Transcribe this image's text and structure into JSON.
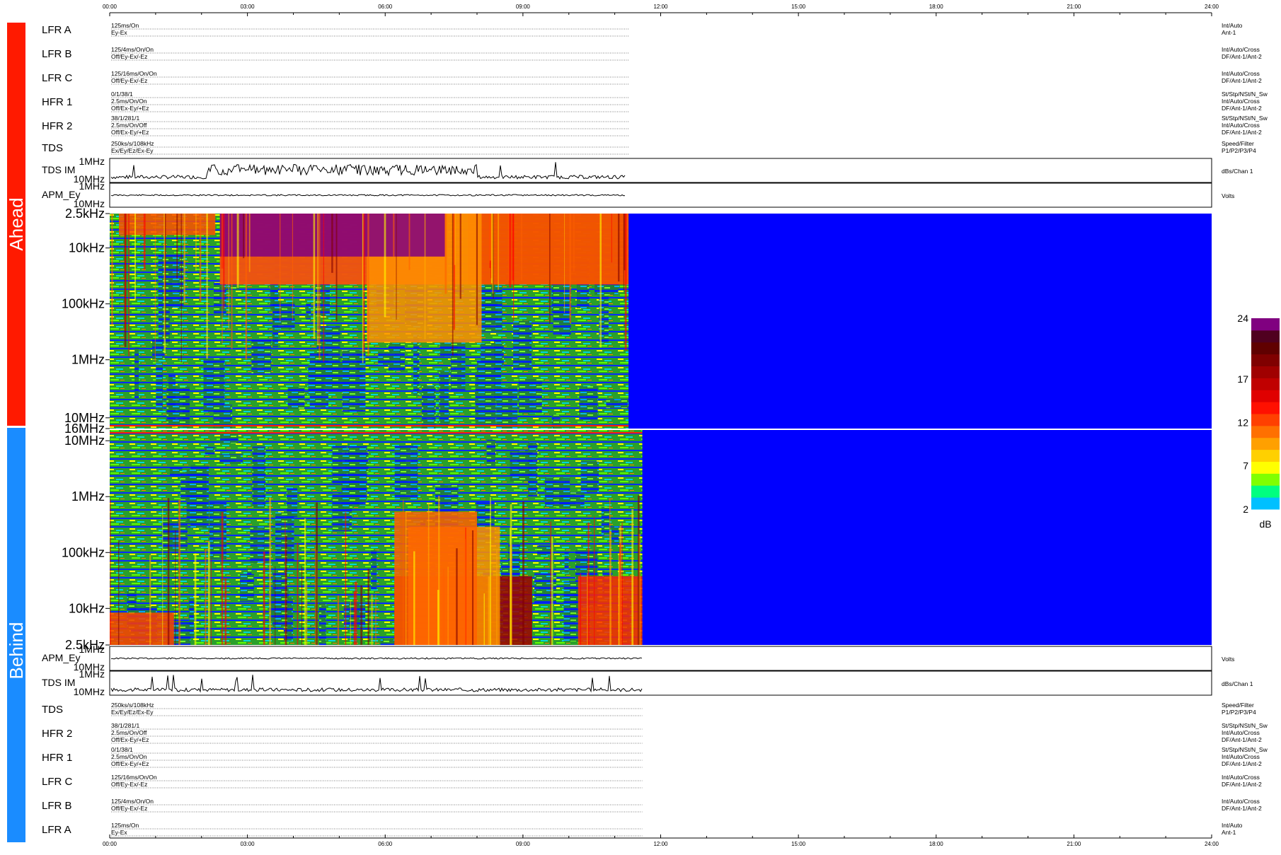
{
  "chart_data": {
    "type": "heatmap",
    "time_axis": {
      "ticks": [
        "00:00",
        "03:00",
        "06:00",
        "09:00",
        "12:00",
        "15:00",
        "18:00",
        "21:00",
        "24:00"
      ],
      "range_hours": [
        0,
        24
      ]
    },
    "side_labels": {
      "top": "Ahead",
      "bottom": "Behind"
    },
    "side_colors": {
      "top": "#ff1a00",
      "bottom": "#1a8cff"
    },
    "ahead_rows": [
      {
        "label": "LFR A",
        "lines": [
          "125ms/On",
          "Ey-Ex"
        ],
        "right": [
          "Int/Auto",
          "Ant-1"
        ]
      },
      {
        "label": "LFR B",
        "lines": [
          "125/4ms/On/On",
          "Off/Ey-Ex/-Ez"
        ],
        "right": [
          "Int/Auto/Cross",
          "DF/Ant-1/Ant-2"
        ]
      },
      {
        "label": "LFR C",
        "lines": [
          "125/16ms/On/On",
          "Off/Ey-Ex/-Ez"
        ],
        "right": [
          "Int/Auto/Cross",
          "DF/Ant-1/Ant-2"
        ]
      },
      {
        "label": "HFR 1",
        "lines": [
          "0/1/38/1",
          "2.5ms/On/On",
          "Off/Ex-Ey/+Ez"
        ],
        "right": [
          "St/Stp/NSt/N_Sw",
          "Int/Auto/Cross",
          "DF/Ant-1/Ant-2"
        ]
      },
      {
        "label": "HFR 2",
        "lines": [
          "38/1/281/1",
          "2.5ms/On/Off",
          "Off/Ex-Ey/+Ez"
        ],
        "right": [
          "St/Stp/NSt/N_Sw",
          "Int/Auto/Cross",
          "DF/Ant-1/Ant-2"
        ]
      },
      {
        "label": "TDS",
        "lines": [
          "250ks/s/108kHz",
          "Ex/Ey/Ez/Ex-Ey"
        ],
        "right": [
          "Speed/Filter",
          "P1/P2/P3/P4"
        ]
      }
    ],
    "behind_rows": [
      {
        "label": "TDS",
        "lines": [
          "250ks/s/108kHz",
          "Ex/Ey/Ez/Ex-Ey"
        ],
        "right": [
          "Speed/Filter",
          "P1/P2/P3/P4"
        ]
      },
      {
        "label": "HFR 2",
        "lines": [
          "38/1/281/1",
          "2.5ms/On/Off",
          "Off/Ex-Ey/+Ez"
        ],
        "right": [
          "St/Stp/NSt/N_Sw",
          "Int/Auto/Cross",
          "DF/Ant-1/Ant-2"
        ]
      },
      {
        "label": "HFR 1",
        "lines": [
          "0/1/38/1",
          "2.5ms/On/On",
          "Off/Ex-Ey/+Ez"
        ],
        "right": [
          "St/Stp/NSt/N_Sw",
          "Int/Auto/Cross",
          "DF/Ant-1/Ant-2"
        ]
      },
      {
        "label": "LFR C",
        "lines": [
          "125/16ms/On/On",
          "Off/Ey-Ex/-Ez"
        ],
        "right": [
          "Int/Auto/Cross",
          "DF/Ant-1/Ant-2"
        ]
      },
      {
        "label": "LFR B",
        "lines": [
          "125/4ms/On/On",
          "Off/Ey-Ex/-Ez"
        ],
        "right": [
          "Int/Auto/Cross",
          "DF/Ant-1/Ant-2"
        ]
      },
      {
        "label": "LFR A",
        "lines": [
          "125ms/On",
          "Ey-Ex"
        ],
        "right": [
          "Int/Auto",
          "Ant-1"
        ]
      }
    ],
    "line_panels": {
      "ahead_tds_im": {
        "label": "TDS IM",
        "y_ticks": [
          "1MHz",
          "10MHz"
        ],
        "right": "dBs/Chan 1",
        "data_end_hour": 11.25
      },
      "ahead_apm": {
        "label": "APM_Ey",
        "y_ticks": [
          "1MHz",
          "10MHz"
        ],
        "right": "Volts",
        "data_end_hour": 11.25
      },
      "behind_apm": {
        "label": "APM_Ey",
        "y_ticks": [
          "1MHz",
          "10MHz"
        ],
        "right": "Volts",
        "data_end_hour": 11.6
      },
      "behind_tds_im": {
        "label": "TDS IM",
        "y_ticks": [
          "1MHz",
          "10MHz"
        ],
        "right": "dBs/Chan 1",
        "data_end_hour": 11.6
      }
    },
    "spectrogram_ahead": {
      "y_ticks": [
        "2.5kHz",
        "10kHz",
        "100kHz",
        "1MHz",
        "10MHz",
        "16MHz"
      ],
      "y_range": [
        "2.5kHz",
        "16MHz"
      ],
      "y_scale": "log",
      "data_end_hour": 11.3,
      "fill_color": "#0000ff"
    },
    "spectrogram_behind": {
      "y_ticks": [
        "10MHz",
        "1MHz",
        "100kHz",
        "10kHz",
        "2.5kHz"
      ],
      "y_range": [
        "16MHz",
        "2.5kHz"
      ],
      "y_scale": "log",
      "data_end_hour": 11.6,
      "fill_color": "#0000ff"
    },
    "colorbar": {
      "ticks": [
        "24",
        "17",
        "12",
        "7",
        "2"
      ],
      "range": [
        2,
        24
      ],
      "label": "dB",
      "colors": [
        "#00c0ff",
        "#00ff80",
        "#80ff00",
        "#ffff00",
        "#ffd000",
        "#ffa000",
        "#ff7000",
        "#ff4000",
        "#ff1000",
        "#e00000",
        "#c00000",
        "#a00000",
        "#800000",
        "#600000",
        "#500020",
        "#800080"
      ]
    }
  }
}
